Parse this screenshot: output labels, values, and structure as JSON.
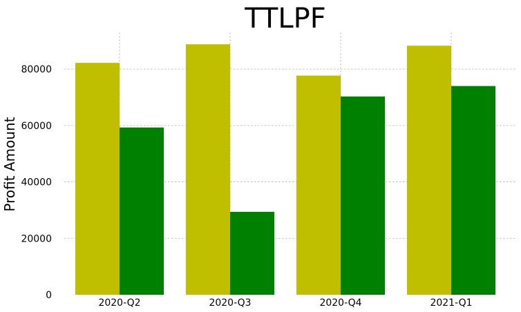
{
  "chart_data": {
    "type": "bar",
    "title": "TTLPF",
    "xlabel": "",
    "ylabel": "Profit Amount",
    "categories": [
      "2020-Q2",
      "2020-Q3",
      "2020-Q4",
      "2021-Q1"
    ],
    "series": [
      {
        "values": [
          82200,
          88800,
          77700,
          88300
        ],
        "color": "#bfbf00"
      },
      {
        "values": [
          59300,
          29400,
          70300,
          74000
        ],
        "color": "#008000"
      }
    ],
    "ylim": [
      0,
      93000
    ],
    "yticks": [
      0,
      20000,
      40000,
      60000,
      80000
    ],
    "grid": true,
    "legend": "none"
  }
}
